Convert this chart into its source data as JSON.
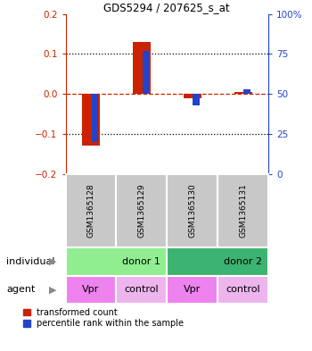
{
  "title": "GDS5294 / 207625_s_at",
  "samples": [
    "GSM1365128",
    "GSM1365129",
    "GSM1365130",
    "GSM1365131"
  ],
  "red_values": [
    -0.13,
    0.13,
    -0.01,
    0.005
  ],
  "blue_values_pct": [
    20,
    77,
    43,
    53
  ],
  "ylim_left": [
    -0.2,
    0.2
  ],
  "ylim_right": [
    0,
    100
  ],
  "yticks_left": [
    -0.2,
    -0.1,
    0.0,
    0.1,
    0.2
  ],
  "yticks_right": [
    0,
    25,
    50,
    75,
    100
  ],
  "ytick_labels_right": [
    "0",
    "25",
    "50",
    "75",
    "100%"
  ],
  "individual_groups": [
    {
      "label": "donor 1",
      "span": [
        0,
        2
      ],
      "color": "#90EE90"
    },
    {
      "label": "donor 2",
      "span": [
        2,
        4
      ],
      "color": "#3CB371"
    }
  ],
  "agent_groups": [
    {
      "label": "Vpr",
      "color": "#EE82EE"
    },
    {
      "label": "control",
      "color": "#EEB4EE"
    },
    {
      "label": "Vpr",
      "color": "#EE82EE"
    },
    {
      "label": "control",
      "color": "#EEB4EE"
    }
  ],
  "red_color": "#CC2200",
  "blue_color": "#2244CC",
  "bar_width": 0.35,
  "blue_bar_width": 0.13,
  "legend_red": "transformed count",
  "legend_blue": "percentile rank within the sample",
  "left_label_color": "#CC2200",
  "right_label_color": "#2244CC",
  "sample_box_color": "#C8C8C8",
  "individual_arrow_label": "individual",
  "agent_arrow_label": "agent"
}
